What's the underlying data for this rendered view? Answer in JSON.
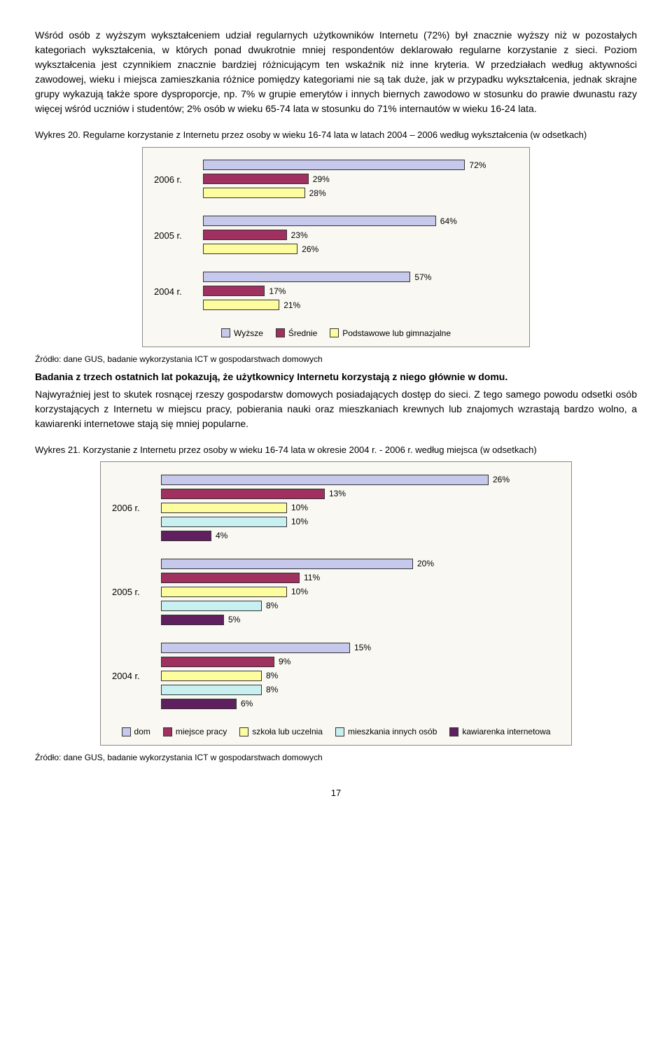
{
  "para1": "Wśród osób z wyższym wykształceniem udział regularnych użytkowników Internetu (72%) był znacznie wyższy niż w pozostałych kategoriach wykształcenia, w których ponad dwukrotnie mniej respondentów deklarowało regularne korzystanie z sieci. Poziom wykształcenia jest czynnikiem znacznie bardziej różnicującym ten wskaźnik niż inne kryteria. W przedziałach według aktywności zawodowej, wieku i miejsca zamieszkania różnice pomiędzy kategoriami nie są tak duże, jak w przypadku wykształcenia, jednak skrajne grupy wykazują także spore dysproporcje, np. 7% w grupie emerytów i innych biernych zawodowo w stosunku do prawie dwunastu razy więcej wśród uczniów i studentów; 2% osób w wieku 65-74 lata w stosunku do 71% internautów w wieku 16-24 lata.",
  "chart20": {
    "caption": "Wykres 20. Regularne korzystanie z Internetu przez osoby w wieku 16-74 lata w latach 2004 – 2006 według wykształcenia (w odsetkach)",
    "colors": {
      "wyzsze": "#c6c8ec",
      "srednie": "#a03060",
      "podstawowe": "#fdfda0"
    },
    "scale": 5.2,
    "years": [
      {
        "label": "2006 r.",
        "bars": [
          {
            "series": "wyzsze",
            "value": 72,
            "text": "72%"
          },
          {
            "series": "srednie",
            "value": 29,
            "text": "29%"
          },
          {
            "series": "podstawowe",
            "value": 28,
            "text": "28%"
          }
        ]
      },
      {
        "label": "2005 r.",
        "bars": [
          {
            "series": "wyzsze",
            "value": 64,
            "text": "64%"
          },
          {
            "series": "srednie",
            "value": 23,
            "text": "23%"
          },
          {
            "series": "podstawowe",
            "value": 26,
            "text": "26%"
          }
        ]
      },
      {
        "label": "2004 r.",
        "bars": [
          {
            "series": "wyzsze",
            "value": 57,
            "text": "57%"
          },
          {
            "series": "srednie",
            "value": 17,
            "text": "17%"
          },
          {
            "series": "podstawowe",
            "value": 21,
            "text": "21%"
          }
        ]
      }
    ],
    "legend": [
      {
        "series": "wyzsze",
        "label": "Wyższe"
      },
      {
        "series": "srednie",
        "label": "Średnie"
      },
      {
        "series": "podstawowe",
        "label": "Podstawowe lub gimnazjalne"
      }
    ]
  },
  "source1": "Źródło: dane GUS, badanie wykorzystania ICT w gospodarstwach domowych",
  "para2bold": "Badania z trzech ostatnich lat pokazują, że użytkownicy Internetu korzystają z niego głównie w domu.",
  "para2rest": "Najwyraźniej jest to skutek rosnącej rzeszy gospodarstw domowych posiadających dostęp do sieci. Z tego samego powodu odsetki osób korzystających z Internetu w miejscu pracy, pobierania nauki oraz mieszkaniach krewnych lub znajomych wzrastają bardzo wolno, a kawiarenki internetowe stają się mniej popularne.",
  "chart21": {
    "caption": "Wykres 21. Korzystanie z Internetu przez osoby w wieku 16-74 lata w okresie 2004 r. - 2006 r. według miejsca (w odsetkach)",
    "colors": {
      "dom": "#c6c8ec",
      "praca": "#a03060",
      "szkola": "#fdfda0",
      "mieszkania": "#c8f0f0",
      "kawiarenka": "#602060"
    },
    "scale": 18,
    "years": [
      {
        "label": "2006 r.",
        "bars": [
          {
            "series": "dom",
            "value": 26,
            "text": "26%"
          },
          {
            "series": "praca",
            "value": 13,
            "text": "13%"
          },
          {
            "series": "szkola",
            "value": 10,
            "text": "10%"
          },
          {
            "series": "mieszkania",
            "value": 10,
            "text": "10%"
          },
          {
            "series": "kawiarenka",
            "value": 4,
            "text": "4%"
          }
        ]
      },
      {
        "label": "2005 r.",
        "bars": [
          {
            "series": "dom",
            "value": 20,
            "text": "20%"
          },
          {
            "series": "praca",
            "value": 11,
            "text": "11%"
          },
          {
            "series": "szkola",
            "value": 10,
            "text": "10%"
          },
          {
            "series": "mieszkania",
            "value": 8,
            "text": "8%"
          },
          {
            "series": "kawiarenka",
            "value": 5,
            "text": "5%"
          }
        ]
      },
      {
        "label": "2004 r.",
        "bars": [
          {
            "series": "dom",
            "value": 15,
            "text": "15%"
          },
          {
            "series": "praca",
            "value": 9,
            "text": "9%"
          },
          {
            "series": "szkola",
            "value": 8,
            "text": "8%"
          },
          {
            "series": "mieszkania",
            "value": 8,
            "text": "8%"
          },
          {
            "series": "kawiarenka",
            "value": 6,
            "text": "6%"
          }
        ]
      }
    ],
    "legend": [
      {
        "series": "dom",
        "label": "dom"
      },
      {
        "series": "praca",
        "label": "miejsce pracy"
      },
      {
        "series": "szkola",
        "label": "szkoła lub uczelnia"
      },
      {
        "series": "mieszkania",
        "label": "mieszkania innych osób"
      },
      {
        "series": "kawiarenka",
        "label": "kawiarenka internetowa"
      }
    ]
  },
  "source2": "Źródło: dane GUS, badanie wykorzystania ICT w gospodarstwach domowych",
  "pagenum": "17"
}
